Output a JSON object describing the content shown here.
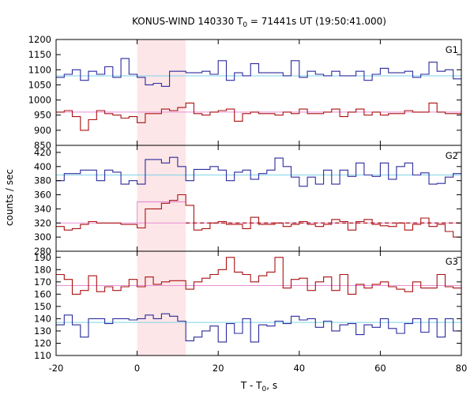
{
  "chart_data": {
    "type": "line",
    "title_main": "KONUS-WIND 140330 T",
    "title_sub": "0",
    "title_rest": " = 71441s UT (19:50:41.000)",
    "xlabel_main": "T - T",
    "xlabel_sub": "0",
    "xlabel_rest": ", s",
    "ylabel": "counts / sec",
    "xlim": [
      -20,
      80
    ],
    "x_ticks": [
      -20,
      0,
      20,
      40,
      60,
      80
    ],
    "x_tick_labels": [
      "-20",
      "0",
      "20",
      "40",
      "60",
      "80"
    ],
    "highlight_interval": [
      0,
      12
    ],
    "bin_edges": [
      -20,
      -18,
      -16,
      -14,
      -12,
      -10,
      -8,
      -6,
      -4,
      -2,
      0,
      2,
      4,
      6,
      8,
      10,
      12,
      14,
      16,
      18,
      20,
      22,
      24,
      26,
      28,
      30,
      32,
      34,
      36,
      38,
      40,
      42,
      44,
      46,
      48,
      50,
      52,
      54,
      56,
      58,
      60,
      62,
      64,
      66,
      68,
      70,
      72,
      74,
      76,
      78,
      80
    ],
    "panels": [
      {
        "label": "G1",
        "ylim": [
          850,
          1200
        ],
        "y_ticks": [
          850,
          900,
          950,
          1000,
          1050,
          1100,
          1150,
          1200
        ],
        "y_tick_labels": [
          "850",
          "900",
          "950",
          "1000",
          "1050",
          "1100",
          "1150",
          "1200"
        ],
        "series": [
          {
            "color": "#2b2b9e",
            "values": [
              1075,
              1085,
              1100,
              1065,
              1095,
              1085,
              1110,
              1075,
              1137,
              1085,
              1075,
              1050,
              1055,
              1045,
              1095,
              1095,
              1090,
              1090,
              1095,
              1085,
              1130,
              1065,
              1090,
              1080,
              1120,
              1090,
              1090,
              1090,
              1080,
              1130,
              1075,
              1095,
              1085,
              1080,
              1095,
              1080,
              1080,
              1095,
              1065,
              1085,
              1105,
              1090,
              1090,
              1095,
              1075,
              1085,
              1125,
              1095,
              1100,
              1070
            ]
          },
          {
            "color": "#aa1111",
            "values": [
              960,
              965,
              945,
              900,
              935,
              965,
              955,
              950,
              940,
              945,
              925,
              955,
              955,
              970,
              965,
              975,
              990,
              955,
              950,
              960,
              965,
              970,
              930,
              955,
              960,
              955,
              955,
              950,
              960,
              955,
              970,
              955,
              955,
              960,
              970,
              945,
              960,
              970,
              950,
              960,
              950,
              955,
              955,
              965,
              960,
              960,
              990,
              960,
              955,
              955
            ]
          }
        ],
        "background": [
          {
            "color": "#7fd3e8",
            "value": 1080
          },
          {
            "color": "#e88fd6",
            "value": 960
          }
        ]
      },
      {
        "label": "G2",
        "ylim": [
          280,
          430
        ],
        "y_ticks": [
          280,
          300,
          320,
          340,
          360,
          380,
          400,
          420
        ],
        "y_tick_labels": [
          "280",
          "300",
          "320",
          "340",
          "360",
          "380",
          "400",
          "420"
        ],
        "series": [
          {
            "color": "#2b2b9e",
            "values": [
              380,
              390,
              390,
              395,
              395,
              380,
              395,
              392,
              375,
              380,
              375,
              410,
              410,
              405,
              413,
              400,
              380,
              396,
              396,
              400,
              395,
              380,
              392,
              395,
              382,
              390,
              395,
              412,
              400,
              385,
              372,
              385,
              375,
              395,
              375,
              395,
              386,
              405,
              388,
              386,
              405,
              382,
              400,
              405,
              388,
              391,
              375,
              376,
              385,
              390
            ]
          },
          {
            "color": "#aa1111",
            "values": [
              315,
              310,
              312,
              318,
              322,
              320,
              320,
              320,
              318,
              318,
              313,
              340,
              340,
              348,
              352,
              360,
              345,
              310,
              312,
              320,
              322,
              318,
              318,
              312,
              328,
              318,
              318,
              320,
              315,
              318,
              322,
              318,
              315,
              318,
              325,
              322,
              310,
              322,
              325,
              318,
              316,
              315,
              320,
              310,
              318,
              327,
              315,
              318,
              308,
              300
            ]
          }
        ],
        "background": [
          {
            "color": "#7fd3e8",
            "value": 388
          },
          {
            "color": "#e88fd6",
            "value": 320
          }
        ],
        "extra_lines": [
          {
            "color": "#e88fd6",
            "dash": false,
            "x": [
              0,
              12
            ],
            "value": 350
          },
          {
            "color": "#aa1111",
            "dash": true,
            "x": [
              12,
              80
            ],
            "value": 320
          }
        ]
      },
      {
        "label": "G3",
        "ylim": [
          110,
          195
        ],
        "y_ticks": [
          110,
          120,
          130,
          140,
          150,
          160,
          170,
          180,
          190
        ],
        "y_tick_labels": [
          "110",
          "120",
          "130",
          "140",
          "150",
          "160",
          "170",
          "180",
          "190"
        ],
        "series": [
          {
            "color": "#2b2b9e",
            "values": [
              135,
              143,
              135,
              125,
              140,
              140,
              136,
              140,
              140,
              139,
              140,
              143,
              140,
              144,
              142,
              138,
              122,
              125,
              130,
              134,
              121,
              136,
              128,
              140,
              121,
              135,
              134,
              138,
              136,
              142,
              139,
              140,
              133,
              138,
              130,
              135,
              136,
              127,
              135,
              133,
              140,
              132,
              128,
              136,
              140,
              129,
              140,
              125,
              140,
              130
            ]
          },
          {
            "color": "#aa1111",
            "values": [
              176,
              172,
              160,
              163,
              175,
              162,
              166,
              163,
              166,
              172,
              166,
              174,
              168,
              170,
              171,
              171,
              164,
              170,
              173,
              176,
              180,
              190,
              178,
              176,
              170,
              175,
              178,
              190,
              165,
              172,
              173,
              163,
              170,
              174,
              163,
              176,
              160,
              168,
              165,
              168,
              170,
              166,
              164,
              162,
              170,
              165,
              165,
              176,
              166,
              165
            ]
          }
        ],
        "background": [
          {
            "color": "#7fd3e8",
            "value": 137
          },
          {
            "color": "#e88fd6",
            "value": 167
          }
        ]
      }
    ]
  }
}
